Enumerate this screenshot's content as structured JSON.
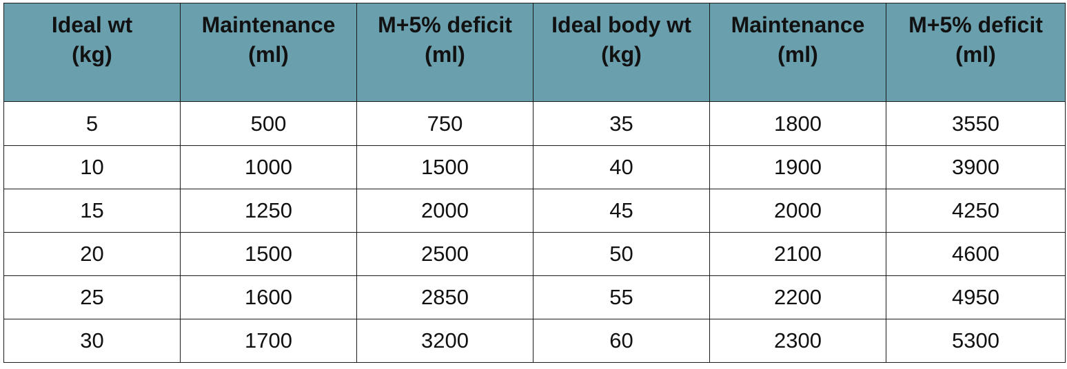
{
  "table": {
    "headers": [
      {
        "line1": "Ideal wt",
        "line2": "(kg)"
      },
      {
        "line1": "Maintenance",
        "line2": "(ml)"
      },
      {
        "line1": "M+5% deficit",
        "line2": "(ml)"
      },
      {
        "line1": "Ideal body wt",
        "line2": "(kg)"
      },
      {
        "line1": "Maintenance",
        "line2": "(ml)"
      },
      {
        "line1": "M+5% deficit",
        "line2": "(ml)"
      }
    ],
    "rows": [
      [
        "5",
        "500",
        "750",
        "35",
        "1800",
        "3550"
      ],
      [
        "10",
        "1000",
        "1500",
        "40",
        "1900",
        "3900"
      ],
      [
        "15",
        "1250",
        "2000",
        "45",
        "2000",
        "4250"
      ],
      [
        "20",
        "1500",
        "2500",
        "50",
        "2100",
        "4600"
      ],
      [
        "25",
        "1600",
        "2850",
        "55",
        "2200",
        "4950"
      ],
      [
        "30",
        "1700",
        "3200",
        "60",
        "2300",
        "5300"
      ]
    ]
  },
  "colors": {
    "header_background": "#6a9fad",
    "border": "#1a1a1a",
    "text": "#111111"
  }
}
